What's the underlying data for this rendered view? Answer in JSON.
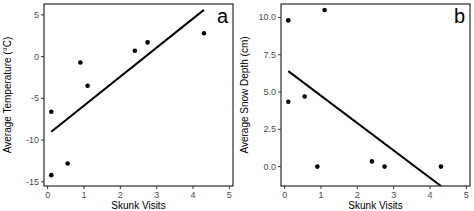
{
  "chart_data": [
    {
      "type": "scatter",
      "annotation": "a",
      "x_label": "Skunk Visits",
      "y_label": "Average Temperature (°C)",
      "xlim": [
        -0.1,
        5.1
      ],
      "xticks": [
        0,
        1,
        2,
        3,
        4,
        5
      ],
      "ylim": [
        -15.5,
        6.3
      ],
      "yticks": [
        -15,
        -10,
        -5,
        0,
        5
      ],
      "grid": false,
      "series": [
        {
          "type": "scatter",
          "color": "#000000",
          "marker": "circle",
          "x": [
            0.1,
            0.1,
            0.55,
            0.9,
            1.1,
            2.4,
            2.75,
            4.3
          ],
          "values": [
            -6.6,
            -14.2,
            -12.8,
            -0.7,
            -3.5,
            0.7,
            1.7,
            2.8
          ]
        },
        {
          "type": "line",
          "color": "#000000",
          "line_style": "solid",
          "x": [
            0.1,
            4.3
          ],
          "values": [
            -9.0,
            5.6
          ]
        }
      ]
    },
    {
      "type": "scatter",
      "annotation": "b",
      "x_label": "Skunk Visits",
      "y_label": "Average Snow Depth (cm)",
      "xlim": [
        -0.1,
        5.1
      ],
      "xticks": [
        0,
        1,
        2,
        3,
        4,
        5
      ],
      "ylim": [
        -1.3,
        10.9
      ],
      "yticks": [
        {
          "value": 0,
          "label": "0.0"
        },
        {
          "value": 2.5,
          "label": "2.5"
        },
        {
          "value": 5,
          "label": "5.0"
        },
        {
          "value": 7.5,
          "label": "7.5"
        },
        {
          "value": 10,
          "label": "10.0"
        }
      ],
      "grid": false,
      "series": [
        {
          "type": "scatter",
          "color": "#000000",
          "marker": "circle",
          "x": [
            0.1,
            0.1,
            0.55,
            0.9,
            1.1,
            2.4,
            2.75,
            4.3
          ],
          "values": [
            9.8,
            4.35,
            4.7,
            0,
            10.5,
            0.35,
            0,
            0
          ]
        },
        {
          "type": "line",
          "color": "#000000",
          "line_style": "solid",
          "x": [
            0.1,
            4.3
          ],
          "values": [
            6.4,
            -1.3
          ]
        }
      ]
    }
  ]
}
